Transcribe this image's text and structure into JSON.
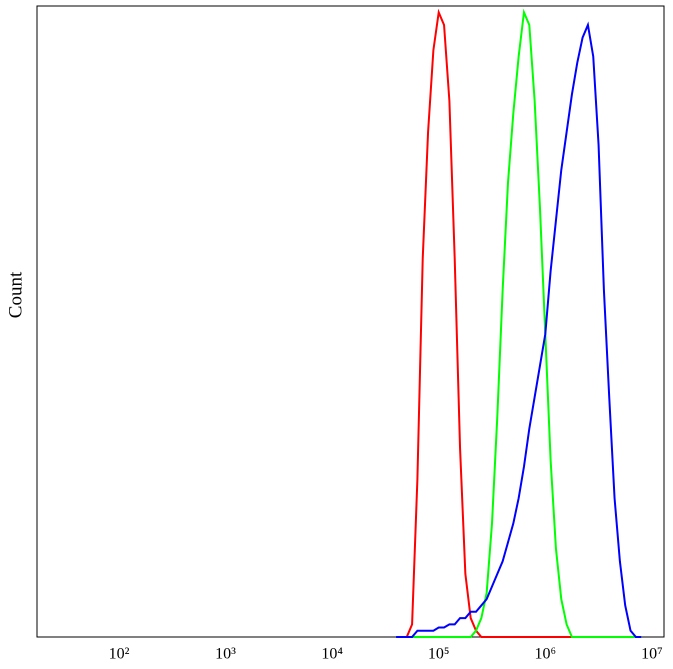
{
  "chart_data": {
    "type": "line",
    "y_label": "Count",
    "log_x": true,
    "xlim": [
      17,
      13000000
    ],
    "ylim": [
      0,
      100
    ],
    "xticks": [
      {
        "value": 100,
        "label": "10²"
      },
      {
        "value": 1000,
        "label": "10³"
      },
      {
        "value": 10000,
        "label": "10⁴"
      },
      {
        "value": 100000,
        "label": "10⁵"
      },
      {
        "value": 1000000,
        "label": "10⁶"
      },
      {
        "value": 10000000,
        "label": "10⁷"
      }
    ],
    "x": [
      39811,
      44668,
      50119,
      56234,
      63096,
      70795,
      79433,
      89125,
      100000,
      112202,
      125893,
      141254,
      158489,
      177828,
      199526,
      223872,
      251189,
      281838,
      316228,
      354813,
      398107,
      446684,
      501187,
      562341,
      630957,
      707946,
      794328,
      891251,
      1000000,
      1122018,
      1258925,
      1412538,
      1584893,
      1778279,
      1995262,
      2238721,
      2511886,
      2818383,
      3162278,
      3548134,
      3981072,
      4466836,
      5011872,
      5623413,
      6309573,
      7079458,
      7943282
    ],
    "series": [
      {
        "color": "#ff0000",
        "values": [
          0,
          0,
          0,
          2,
          25,
          60,
          80,
          93,
          99,
          97,
          85,
          60,
          30,
          10,
          3,
          1,
          0,
          0,
          0,
          0,
          0,
          0,
          0,
          0,
          0,
          0,
          0,
          0,
          0,
          0,
          0,
          0,
          0,
          0,
          0,
          0,
          0,
          0,
          0,
          0,
          0,
          0,
          0,
          0,
          0,
          0,
          0
        ]
      },
      {
        "color": "#00ff00",
        "values": [
          0,
          0,
          0,
          0,
          0,
          0,
          0,
          0,
          0,
          0,
          0,
          0,
          0,
          0,
          0,
          1,
          3,
          7,
          18,
          35,
          55,
          72,
          83,
          92,
          99,
          97,
          85,
          68,
          48,
          28,
          14,
          6,
          2,
          0,
          0,
          0,
          0,
          0,
          0,
          0,
          0,
          0,
          0,
          0,
          0,
          0,
          0
        ]
      },
      {
        "color": "#0000ff",
        "values": [
          0,
          0,
          0,
          0,
          1,
          1,
          1,
          1,
          1.5,
          1.5,
          2,
          2,
          3,
          3,
          4,
          4,
          5,
          6,
          8,
          10,
          12,
          15,
          18,
          22,
          27,
          33,
          38,
          43,
          48,
          58,
          66,
          74,
          80,
          86,
          91,
          95,
          97,
          92,
          78,
          55,
          38,
          22,
          12,
          5,
          1,
          0,
          0
        ]
      }
    ]
  }
}
